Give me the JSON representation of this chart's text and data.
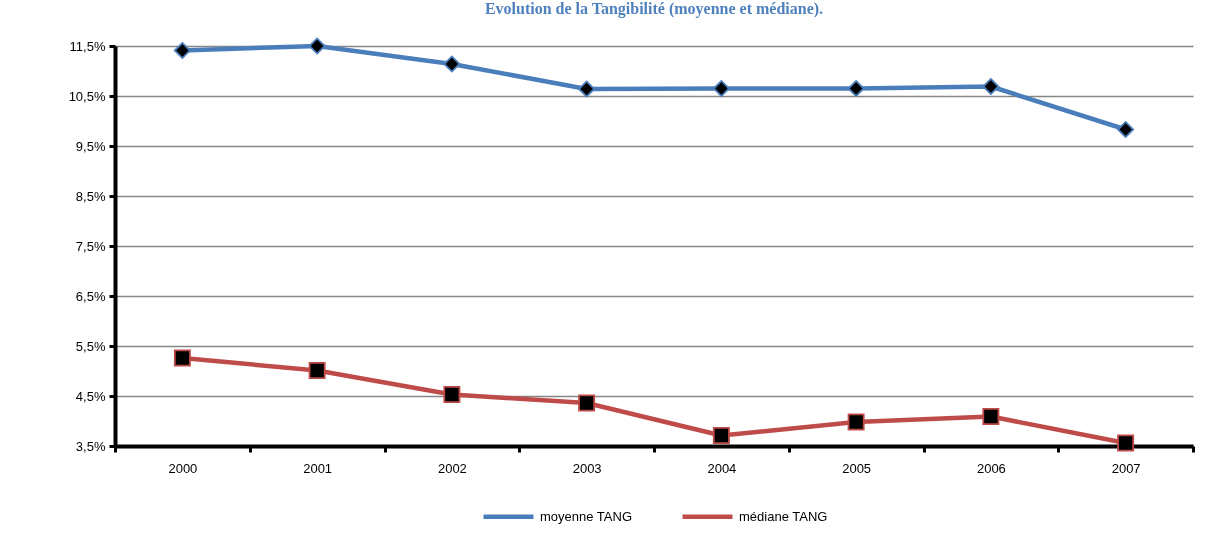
{
  "chart_data": {
    "type": "line",
    "title": "Evolution de la Tangibilité (moyenne et médiane).",
    "categories": [
      "2000",
      "2001",
      "2002",
      "2003",
      "2004",
      "2005",
      "2006",
      "2007"
    ],
    "series": [
      {
        "name": "moyenne TANG",
        "color": "#4a7ebb",
        "marker": "diamond",
        "values": [
          11.41,
          11.5,
          11.14,
          10.64,
          10.65,
          10.65,
          10.69,
          9.83
        ]
      },
      {
        "name": "médiane TANG",
        "color": "#be4b48",
        "marker": "square",
        "values": [
          5.26,
          5.01,
          4.53,
          4.36,
          3.71,
          3.98,
          4.09,
          3.56
        ]
      }
    ],
    "ylim": [
      3.5,
      11.5
    ],
    "yticks": [
      {
        "value": 3.5,
        "label": "3,5%"
      },
      {
        "value": 4.5,
        "label": "4,5%"
      },
      {
        "value": 5.5,
        "label": "5,5%"
      },
      {
        "value": 6.5,
        "label": "6,5%"
      },
      {
        "value": 7.5,
        "label": "7,5%"
      },
      {
        "value": 8.5,
        "label": "8,5%"
      },
      {
        "value": 9.5,
        "label": "9,5%"
      },
      {
        "value": 10.5,
        "label": "10,5%"
      },
      {
        "value": 11.5,
        "label": "11,5%"
      }
    ],
    "grid": "y",
    "legend": "bottom",
    "line_style": "solid"
  }
}
